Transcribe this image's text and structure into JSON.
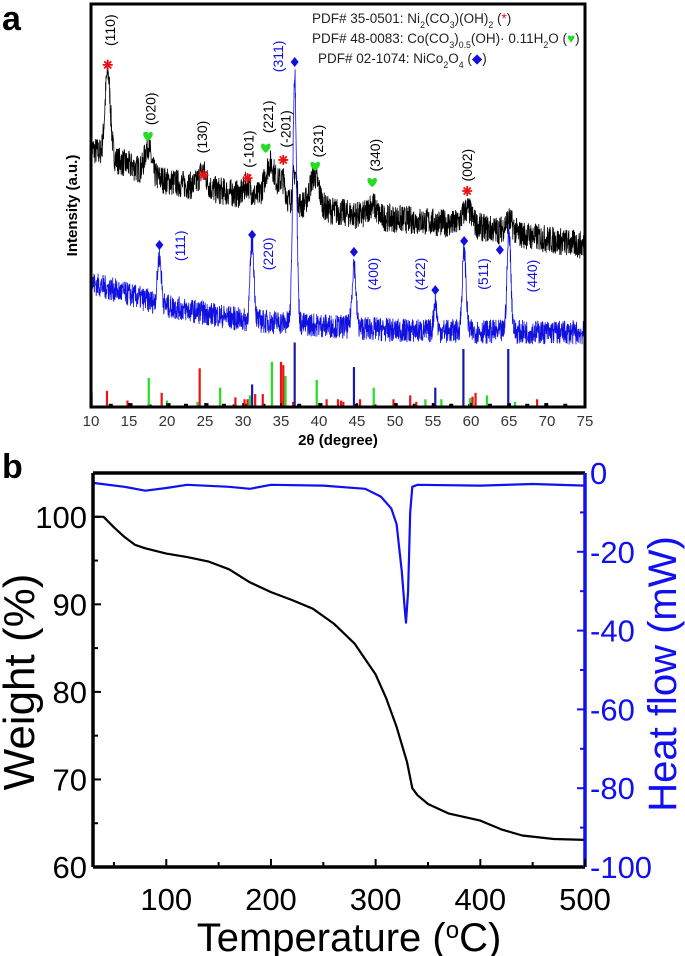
{
  "chart_data": [
    {
      "panel_label": "a",
      "type": "line",
      "xlabel_parts": [
        {
          "t": "2θ  (degree)"
        }
      ],
      "ylabel": "Intensity (a.u.)",
      "xlim": [
        10,
        75
      ],
      "ylim": [
        0,
        100
      ],
      "x_ticks": [
        10,
        15,
        20,
        25,
        30,
        35,
        40,
        45,
        50,
        55,
        60,
        65,
        70,
        75
      ],
      "grid": false,
      "colors": {
        "black": "#000000",
        "blue": "#1010e0",
        "red": "#ee1111",
        "green": "#22dd22",
        "stick_blue": "#1a1aa8"
      },
      "legend_placement": "top-right",
      "legend": [
        {
          "parts": [
            {
              "t": "PDF# 35-0501: Ni"
            },
            {
              "t": "2",
              "sub": true
            },
            {
              "t": "(CO"
            },
            {
              "t": "3",
              "sub": true
            },
            {
              "t": ")(OH)"
            },
            {
              "t": "2",
              "sub": true
            },
            {
              "t": " ("
            },
            {
              "sym": "asterisk",
              "color": "red"
            },
            {
              "t": ")"
            }
          ]
        },
        {
          "parts": [
            {
              "t": "PDF# 48-0083: Co(CO"
            },
            {
              "t": "3",
              "sub": true
            },
            {
              "t": ")"
            },
            {
              "t": "0.5",
              "sub": true
            },
            {
              "t": "(OH)· 0.11H"
            },
            {
              "t": "2",
              "sub": true
            },
            {
              "t": "O ("
            },
            {
              "sym": "heart",
              "color": "green"
            },
            {
              "t": ")"
            }
          ]
        },
        {
          "parts": [
            {
              "t": "PDF# 02-1074: NiCo"
            },
            {
              "t": "2",
              "sub": true
            },
            {
              "t": "O"
            },
            {
              "t": "4",
              "sub": true
            },
            {
              "t": " ("
            },
            {
              "sym": "diamond",
              "color": "blue"
            },
            {
              "t": ")"
            }
          ]
        }
      ],
      "series": [
        {
          "color": "black",
          "baseline": [
            [
              10,
              64
            ],
            [
              20,
              56
            ],
            [
              30,
              52.6
            ],
            [
              45,
              47.6
            ],
            [
              60,
              45
            ],
            [
              75,
              40
            ]
          ],
          "peaks": [
            [
              12.2,
              21,
              0.35
            ],
            [
              17.5,
              7,
              0.4
            ],
            [
              24.7,
              4,
              0.5
            ],
            [
              30.6,
              3,
              0.4
            ],
            [
              33.6,
              9,
              0.7
            ],
            [
              35.2,
              5,
              0.4
            ],
            [
              36.8,
              8,
              0.25
            ],
            [
              39.4,
              8,
              0.6
            ],
            [
              47.0,
              3,
              0.5
            ],
            [
              59.5,
              4,
              0.6
            ],
            [
              65.0,
              3,
              0.5
            ]
          ]
        },
        {
          "color": "blue",
          "baseline": [
            [
              10,
              30.8
            ],
            [
              20,
              25
            ],
            [
              30,
              21.6
            ],
            [
              50,
              19
            ],
            [
              75,
              18.4
            ]
          ],
          "peaks": [
            [
              19.0,
              12,
              0.25
            ],
            [
              31.2,
              19.5,
              0.25
            ],
            [
              36.8,
              62,
              0.25
            ],
            [
              44.6,
              16,
              0.25
            ],
            [
              55.3,
              7.5,
              0.2
            ],
            [
              59.1,
              20,
              0.25
            ],
            [
              65.0,
              25,
              0.25
            ]
          ]
        }
      ],
      "reference_sticks": {
        "red": [
          [
            12.1,
            25
          ],
          [
            14.8,
            10
          ],
          [
            19.3,
            22
          ],
          [
            24.3,
            60
          ],
          [
            29.0,
            15
          ],
          [
            30.2,
            12
          ],
          [
            30.6,
            12
          ],
          [
            31.6,
            20
          ],
          [
            32.6,
            20
          ],
          [
            35.0,
            70
          ],
          [
            35.3,
            65
          ],
          [
            36.6,
            8
          ],
          [
            41.0,
            12
          ],
          [
            42.5,
            12
          ],
          [
            42.9,
            10
          ],
          [
            43.2,
            8
          ],
          [
            45.4,
            12
          ],
          [
            49.8,
            12
          ],
          [
            52.0,
            18
          ],
          [
            52.8,
            8
          ],
          [
            60.2,
            16
          ],
          [
            60.6,
            22
          ],
          [
            68.7,
            12
          ]
        ],
        "green": [
          [
            10.1,
            22
          ],
          [
            17.6,
            45
          ],
          [
            20.0,
            10
          ],
          [
            24.0,
            8
          ],
          [
            27.0,
            30
          ],
          [
            29.0,
            8
          ],
          [
            30.9,
            18
          ],
          [
            33.8,
            70
          ],
          [
            35.6,
            48
          ],
          [
            39.7,
            42
          ],
          [
            47.2,
            30
          ],
          [
            54.0,
            12
          ],
          [
            56.1,
            12
          ],
          [
            59.9,
            14
          ],
          [
            62.1,
            18
          ],
          [
            65.8,
            8
          ]
        ],
        "blue": [
          [
            31.2,
            35
          ],
          [
            36.8,
            100
          ],
          [
            44.6,
            62
          ],
          [
            55.3,
            30
          ],
          [
            59.0,
            90
          ],
          [
            64.9,
            90
          ]
        ],
        "black": [
          [
            12.6,
            5
          ],
          [
            15.2,
            6
          ],
          [
            17.7,
            4
          ],
          [
            20.2,
            6
          ],
          [
            22.5,
            5
          ],
          [
            25.2,
            6
          ],
          [
            27.5,
            5
          ],
          [
            28.9,
            4
          ],
          [
            30.3,
            5
          ],
          [
            32.7,
            5
          ],
          [
            37.4,
            5
          ],
          [
            40.2,
            6
          ],
          [
            44.9,
            5
          ],
          [
            47.3,
            4
          ],
          [
            50.1,
            6
          ],
          [
            52.6,
            5
          ],
          [
            55.1,
            6
          ],
          [
            57.4,
            5
          ],
          [
            59.9,
            5
          ],
          [
            62.5,
            5
          ],
          [
            65.0,
            6
          ],
          [
            67.4,
            5
          ],
          [
            69.9,
            6
          ],
          [
            72.4,
            5
          ]
        ]
      },
      "markers": [
        {
          "sym": "asterisk",
          "color": "red",
          "x": 12.2,
          "y": 84.9
        },
        {
          "sym": "heart",
          "color": "green",
          "x": 17.5,
          "y": 67.2
        },
        {
          "sym": "asterisk",
          "color": "red",
          "x": 24.8,
          "y": 57.6
        },
        {
          "sym": "asterisk",
          "color": "red",
          "x": 30.6,
          "y": 56.8
        },
        {
          "sym": "heart",
          "color": "green",
          "x": 33.0,
          "y": 64.3
        },
        {
          "sym": "asterisk",
          "color": "red",
          "x": 35.3,
          "y": 61.3
        },
        {
          "sym": "heart",
          "color": "green",
          "x": 39.5,
          "y": 59.8
        },
        {
          "sym": "heart",
          "color": "green",
          "x": 47.0,
          "y": 55.8
        },
        {
          "sym": "asterisk",
          "color": "red",
          "x": 59.5,
          "y": 53.6
        },
        {
          "sym": "diamond",
          "color": "blue",
          "x": 36.8,
          "y": 85.6
        },
        {
          "sym": "diamond",
          "color": "blue",
          "x": 19.0,
          "y": 40.2
        },
        {
          "sym": "diamond",
          "color": "blue",
          "x": 31.2,
          "y": 42.7
        },
        {
          "sym": "diamond",
          "color": "blue",
          "x": 44.6,
          "y": 38.5
        },
        {
          "sym": "diamond",
          "color": "blue",
          "x": 55.3,
          "y": 29.0
        },
        {
          "sym": "diamond",
          "color": "blue",
          "x": 59.1,
          "y": 41.2
        },
        {
          "sym": "diamond",
          "color": "blue",
          "x": 63.8,
          "y": 39.0
        }
      ],
      "annotations": [
        {
          "text": "(110)",
          "color": "black",
          "x": 12.5,
          "y": 93.5
        },
        {
          "text": "(020)",
          "color": "black",
          "x": 17.8,
          "y": 74
        },
        {
          "text": "(130)",
          "color": "black",
          "x": 24.6,
          "y": 67
        },
        {
          "text": "(-101)",
          "color": "black",
          "x": 30.7,
          "y": 64
        },
        {
          "text": "(221)",
          "color": "black",
          "x": 33.3,
          "y": 72
        },
        {
          "text": "(-201)",
          "color": "black",
          "x": 35.6,
          "y": 69
        },
        {
          "text": "(311)",
          "color": "blue",
          "x": 34.6,
          "y": 87
        },
        {
          "text": "(231)",
          "color": "black",
          "x": 39.9,
          "y": 66
        },
        {
          "text": "(340)",
          "color": "black",
          "x": 47.4,
          "y": 62.5
        },
        {
          "text": "(002)",
          "color": "black",
          "x": 59.5,
          "y": 60
        },
        {
          "text": "(111)",
          "color": "blue",
          "x": 21.7,
          "y": 40
        },
        {
          "text": "(220)",
          "color": "blue",
          "x": 33.3,
          "y": 38
        },
        {
          "text": "(400)",
          "color": "blue",
          "x": 47.1,
          "y": 33
        },
        {
          "text": "(422)",
          "color": "blue",
          "x": 53.3,
          "y": 33
        },
        {
          "text": "(511)",
          "color": "blue",
          "x": 61.6,
          "y": 33
        },
        {
          "text": "(440)",
          "color": "blue",
          "x": 68.0,
          "y": 32.5
        }
      ]
    },
    {
      "panel_label": "b",
      "type": "line",
      "xlabel_parts": [
        {
          "t": "Temperature ("
        },
        {
          "t": "o",
          "sup": true
        },
        {
          "t": "C)"
        }
      ],
      "ylabel": "Weight (%)",
      "y2label": "Heat flow (mW)",
      "xlim": [
        30,
        500
      ],
      "ylim": [
        60,
        105
      ],
      "y2lim": [
        -100,
        0
      ],
      "x_ticks": [
        100,
        200,
        300,
        400,
        500
      ],
      "y_ticks": [
        60,
        70,
        80,
        90,
        100
      ],
      "y2_ticks": [
        0,
        -20,
        -40,
        -60,
        -80,
        -100
      ],
      "grid": false,
      "colors": {
        "weight": "#000000",
        "heat_flow": "#1010f0"
      },
      "series": [
        {
          "axis": "left",
          "color": "weight",
          "points": [
            [
              30,
              100
            ],
            [
              40,
              100
            ],
            [
              50,
              98.8
            ],
            [
              60,
              97.7
            ],
            [
              70,
              96.8
            ],
            [
              80,
              96.4
            ],
            [
              100,
              95.8
            ],
            [
              120,
              95.4
            ],
            [
              140,
              94.9
            ],
            [
              160,
              94
            ],
            [
              180,
              92.5
            ],
            [
              200,
              91.4
            ],
            [
              220,
              90.5
            ],
            [
              240,
              89.5
            ],
            [
              260,
              87.8
            ],
            [
              280,
              85.5
            ],
            [
              300,
              82
            ],
            [
              310,
              79.3
            ],
            [
              320,
              76
            ],
            [
              330,
              72
            ],
            [
              335,
              69
            ],
            [
              340,
              68.2
            ],
            [
              350,
              67.2
            ],
            [
              370,
              66.1
            ],
            [
              400,
              65.3
            ],
            [
              420,
              64.3
            ],
            [
              440,
              63.6
            ],
            [
              470,
              63.2
            ],
            [
              500,
              63.1
            ]
          ]
        },
        {
          "axis": "right",
          "color": "heat_flow",
          "points": [
            [
              30,
              -2.5
            ],
            [
              60,
              -3.5
            ],
            [
              80,
              -4.5
            ],
            [
              100,
              -3.8
            ],
            [
              120,
              -3.0
            ],
            [
              160,
              -3.5
            ],
            [
              180,
              -4
            ],
            [
              200,
              -3
            ],
            [
              250,
              -3.2
            ],
            [
              290,
              -4
            ],
            [
              305,
              -6
            ],
            [
              315,
              -9
            ],
            [
              320,
              -13
            ],
            [
              325,
              -25
            ],
            [
              328,
              -35
            ],
            [
              329,
              -38
            ],
            [
              331,
              -30
            ],
            [
              333,
              -10
            ],
            [
              335,
              -3.5
            ],
            [
              340,
              -3
            ],
            [
              400,
              -3.2
            ],
            [
              450,
              -2.8
            ],
            [
              500,
              -3.2
            ]
          ]
        }
      ]
    }
  ]
}
